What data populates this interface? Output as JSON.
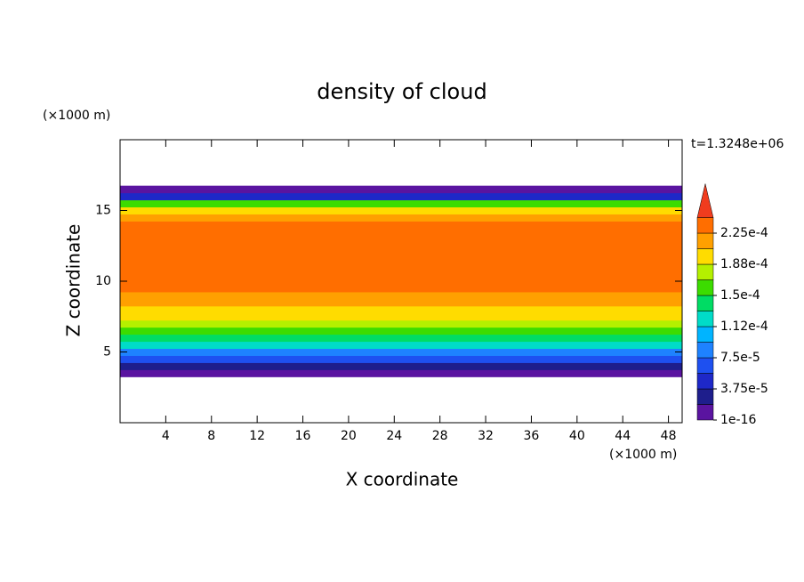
{
  "chart_data": {
    "type": "contour",
    "title": "density of cloud",
    "x_label": "X coordinate",
    "y_label": "Z coordinate",
    "x_unit": "(×1000 m)",
    "y_unit": "(×1000 m)",
    "annotation": "t=1.3248e+06",
    "xlim": [
      0,
      49.2
    ],
    "ylim": [
      0,
      20
    ],
    "xticks": [
      4,
      8,
      12,
      16,
      20,
      24,
      28,
      32,
      36,
      40,
      44,
      48
    ],
    "yticks": [
      5,
      10,
      15
    ],
    "profile": {
      "z": [
        3.5,
        4,
        4.5,
        5,
        5.5,
        6,
        6.5,
        7,
        7.5,
        8,
        8.5,
        9,
        9.5,
        10,
        10.5,
        11,
        11.5,
        12,
        12.5,
        13,
        13.5,
        14,
        14.5,
        15,
        15.5,
        16,
        16.5
      ],
      "values": [
        1e-05,
        3e-05,
        6e-05,
        9e-05,
        0.00012,
        0.00014,
        0.00016,
        0.000175,
        0.00019,
        0.0002,
        0.00021,
        0.00022,
        0.00023,
        0.00023,
        0.00023,
        0.00023,
        0.00023,
        0.00023,
        0.00023,
        0.00023,
        0.00023,
        0.00023,
        0.00022,
        0.0002,
        0.00015,
        5e-05,
        1e-05
      ]
    },
    "levels": [
      1e-16,
      1.875e-05,
      3.75e-05,
      5.625e-05,
      7.5e-05,
      9.375e-05,
      0.0001125,
      0.00013125,
      0.00015,
      0.00016875,
      0.0001875,
      0.00020625,
      0.000225,
      0.00024375
    ],
    "colors": [
      "#5a14a0",
      "#1e1e8c",
      "#1e28c8",
      "#1e50f0",
      "#1e82ff",
      "#00b4ff",
      "#00dcc8",
      "#00dc64",
      "#3cdc00",
      "#b4f000",
      "#ffdc00",
      "#ffa000",
      "#ff6e00",
      "#f03c1e",
      "#f0a0a0"
    ],
    "cbar_ticks": [
      {
        "value": 1e-16,
        "label": "1e-16"
      },
      {
        "value": 3.75e-05,
        "label": "3.75e-5"
      },
      {
        "value": 7.5e-05,
        "label": "7.5e-5"
      },
      {
        "value": 0.0001125,
        "label": "1.12e-4"
      },
      {
        "value": 0.00015,
        "label": "1.5e-4"
      },
      {
        "value": 0.0001875,
        "label": "1.88e-4"
      },
      {
        "value": 0.000225,
        "label": "2.25e-4"
      }
    ]
  }
}
